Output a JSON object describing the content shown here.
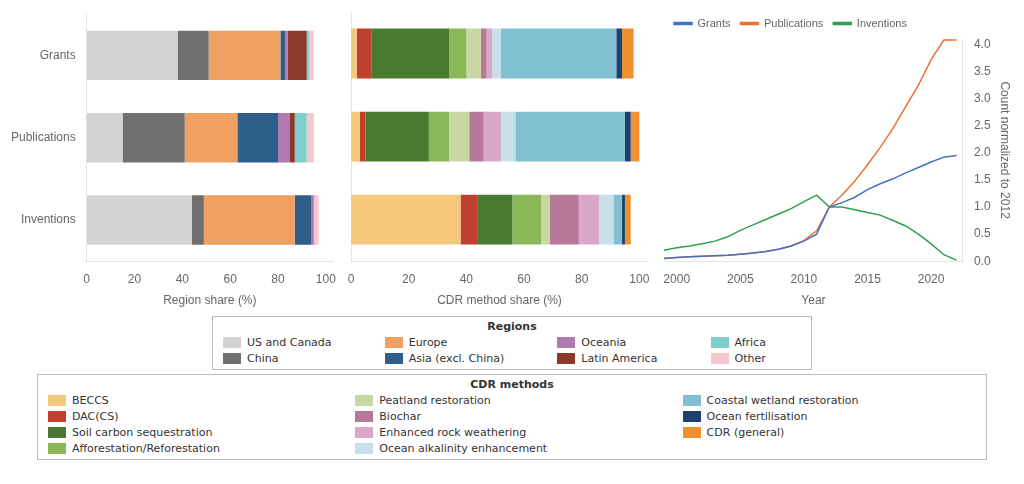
{
  "chart_data": [
    {
      "type": "bar",
      "orientation": "horizontal",
      "stacked": true,
      "categories": [
        "Grants",
        "Publications",
        "Inventions"
      ],
      "series": [
        {
          "name": "US and Canada",
          "color": "#d3d3d3",
          "values": [
            38,
            15,
            44
          ]
        },
        {
          "name": "China",
          "color": "#707070",
          "values": [
            13,
            26,
            5
          ]
        },
        {
          "name": "Europe",
          "color": "#f0a060",
          "values": [
            30,
            22,
            38
          ]
        },
        {
          "name": "Asia (excl. China)",
          "color": "#2e5f8a",
          "values": [
            2,
            17,
            7
          ]
        },
        {
          "name": "Oceania",
          "color": "#b07ab0",
          "values": [
            1,
            5,
            1
          ]
        },
        {
          "name": "Latin America",
          "color": "#8b3a2a",
          "values": [
            8,
            2,
            0
          ]
        },
        {
          "name": "Africa",
          "color": "#7ecece",
          "values": [
            1,
            5,
            0
          ]
        },
        {
          "name": "Other",
          "color": "#f5c8d0",
          "values": [
            2,
            3,
            2
          ]
        }
      ],
      "xlabel": "Region share (%)",
      "xlim": [
        0,
        103
      ],
      "xticks": [
        0,
        20,
        40,
        60,
        80,
        100
      ],
      "grid": false,
      "legend": "bottom",
      "legend_title": "Regions"
    },
    {
      "type": "bar",
      "orientation": "horizontal",
      "stacked": true,
      "categories": [
        "Grants",
        "Publications",
        "Inventions"
      ],
      "series": [
        {
          "name": "BECCS",
          "color": "#f5c87a",
          "values": [
            2,
            3,
            38
          ]
        },
        {
          "name": "DAC(CS)",
          "color": "#c04030",
          "values": [
            5,
            2,
            6
          ]
        },
        {
          "name": "Soil carbon sequestration",
          "color": "#4a7a30",
          "values": [
            27,
            22,
            12
          ]
        },
        {
          "name": "Afforestation/Reforestation",
          "color": "#8ab858",
          "values": [
            6,
            7,
            10
          ]
        },
        {
          "name": "Peatland restoration",
          "color": "#c8d8a0",
          "values": [
            5,
            7,
            3
          ]
        },
        {
          "name": "Biochar",
          "color": "#b87898",
          "values": [
            2,
            5,
            10
          ]
        },
        {
          "name": "Enhanced rock weathering",
          "color": "#d8a8c8",
          "values": [
            2,
            6,
            7
          ]
        },
        {
          "name": "Ocean alkalinity enhancement",
          "color": "#c8e0ec",
          "values": [
            3,
            5,
            5
          ]
        },
        {
          "name": "Coastal wetland restoration",
          "color": "#80c0d0",
          "values": [
            40,
            38,
            3
          ]
        },
        {
          "name": "Ocean fertilisation",
          "color": "#1e4070",
          "values": [
            2,
            2,
            1
          ]
        },
        {
          "name": "CDR (general)",
          "color": "#f09030",
          "values": [
            4,
            3,
            2
          ]
        }
      ],
      "xlabel": "CDR method share (%)",
      "xlim": [
        0,
        103
      ],
      "xticks": [
        0,
        20,
        40,
        60,
        80,
        100
      ],
      "grid": false,
      "tick_labels": "x",
      "legend": "bottom",
      "legend_title": "CDR methods"
    },
    {
      "type": "line",
      "x": [
        1999,
        2000,
        2001,
        2002,
        2003,
        2004,
        2005,
        2006,
        2007,
        2008,
        2009,
        2010,
        2011,
        2012,
        2013,
        2014,
        2015,
        2016,
        2017,
        2018,
        2019,
        2020,
        2021,
        2022
      ],
      "series": [
        {
          "name": "Grants",
          "color": "#4472c4",
          "values": [
            0.05,
            0.07,
            0.08,
            0.09,
            0.1,
            0.11,
            0.13,
            0.15,
            0.18,
            0.22,
            0.28,
            0.37,
            0.5,
            1.0,
            1.08,
            1.18,
            1.32,
            1.43,
            1.52,
            1.63,
            1.73,
            1.83,
            1.92,
            1.95
          ]
        },
        {
          "name": "Publications",
          "color": "#f07030",
          "values": [
            0.05,
            0.07,
            0.08,
            0.09,
            0.1,
            0.11,
            0.13,
            0.15,
            0.18,
            0.22,
            0.28,
            0.38,
            0.56,
            1.0,
            1.22,
            1.48,
            1.78,
            2.1,
            2.45,
            2.85,
            3.25,
            3.72,
            4.08,
            4.08
          ]
        },
        {
          "name": "Inventions",
          "color": "#30a050",
          "values": [
            0.2,
            0.25,
            0.28,
            0.32,
            0.37,
            0.45,
            0.57,
            0.67,
            0.77,
            0.87,
            0.97,
            1.1,
            1.22,
            1.0,
            1.0,
            0.95,
            0.9,
            0.85,
            0.75,
            0.65,
            0.5,
            0.32,
            0.12,
            0.02
          ]
        }
      ],
      "xlabel": "Year",
      "ylabel": "Count normalized to 2012",
      "xlim": [
        1999,
        2022.5
      ],
      "xticks": [
        2000,
        2005,
        2010,
        2015,
        2020
      ],
      "ylim": [
        0,
        4.1
      ],
      "yticks": [
        {
          "value": 0,
          "label": "0.0"
        },
        0.5,
        {
          "value": 1,
          "label": "1.0"
        },
        1.5,
        {
          "value": 2,
          "label": "2.0"
        },
        2.5,
        {
          "value": 3,
          "label": "3.0"
        },
        3.5,
        {
          "value": 4,
          "label": "4.0"
        }
      ],
      "grid": false,
      "legend": "upper left"
    }
  ]
}
